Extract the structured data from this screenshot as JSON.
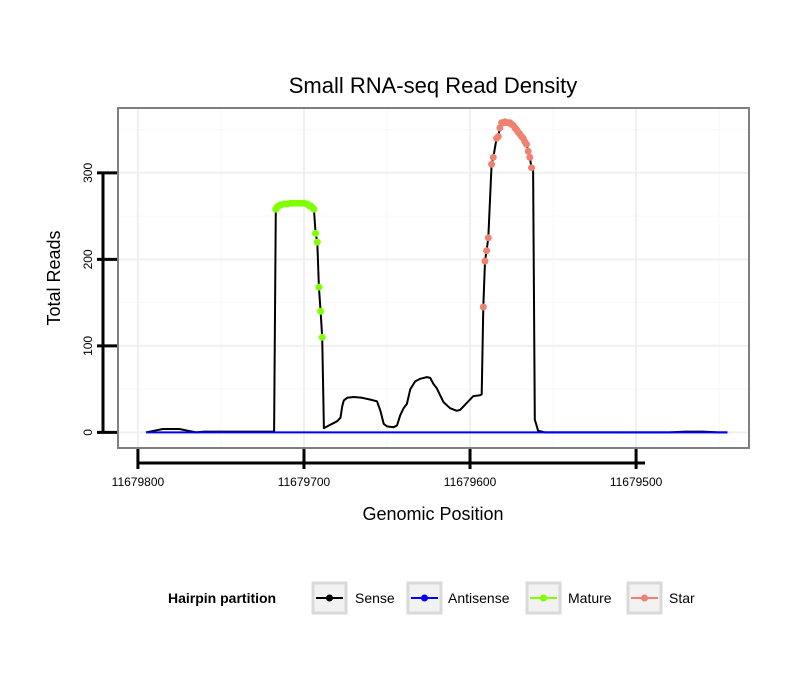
{
  "chart_data": {
    "type": "line",
    "title": "Small RNA-seq Read Density",
    "xlabel": "Genomic Position",
    "ylabel": "Total Reads",
    "x_reversed": true,
    "xlim": [
      11679812,
      11679432
    ],
    "ylim": [
      -18,
      375
    ],
    "x_ticks": [
      11679800,
      11679700,
      11679600,
      11679500
    ],
    "x_tick_labels": [
      "11679800",
      "11679700",
      "11679600",
      "11679500"
    ],
    "y_ticks": [
      0,
      100,
      200,
      300
    ],
    "y_tick_labels": [
      "0",
      "100",
      "200",
      "300"
    ],
    "grid": true,
    "legend": {
      "title": "Hairpin partition",
      "position": "bottom",
      "entries": [
        {
          "label": "Sense",
          "color": "#000000"
        },
        {
          "label": "Antisense",
          "color": "#0000ff"
        },
        {
          "label": "Mature",
          "color": "#7fff00"
        },
        {
          "label": "Star",
          "color": "#f08070"
        }
      ]
    },
    "series": [
      {
        "name": "Sense",
        "color": "#000000",
        "points": [
          [
            11679795,
            0
          ],
          [
            11679790,
            2
          ],
          [
            11679785,
            4
          ],
          [
            11679780,
            4
          ],
          [
            11679775,
            4
          ],
          [
            11679770,
            2
          ],
          [
            11679765,
            0
          ],
          [
            11679760,
            1
          ],
          [
            11679740,
            1
          ],
          [
            11679720,
            1
          ],
          [
            11679718,
            1
          ],
          [
            11679717,
            258
          ],
          [
            11679715,
            262
          ],
          [
            11679710,
            264
          ],
          [
            11679705,
            265
          ],
          [
            11679700,
            265
          ],
          [
            11679696,
            263
          ],
          [
            11679694,
            258
          ],
          [
            11679693,
            230
          ],
          [
            11679692,
            220
          ],
          [
            11679691,
            168
          ],
          [
            11679690,
            140
          ],
          [
            11679689,
            110
          ],
          [
            11679688,
            5
          ],
          [
            11679685,
            8
          ],
          [
            11679680,
            13
          ],
          [
            11679678,
            17
          ],
          [
            11679677,
            30
          ],
          [
            11679676,
            37
          ],
          [
            11679674,
            40
          ],
          [
            11679670,
            41
          ],
          [
            11679665,
            40
          ],
          [
            11679660,
            38
          ],
          [
            11679656,
            36
          ],
          [
            11679654,
            25
          ],
          [
            11679652,
            10
          ],
          [
            11679650,
            7
          ],
          [
            11679646,
            6
          ],
          [
            11679644,
            8
          ],
          [
            11679642,
            20
          ],
          [
            11679640,
            28
          ],
          [
            11679638,
            33
          ],
          [
            11679636,
            50
          ],
          [
            11679633,
            59
          ],
          [
            11679630,
            62
          ],
          [
            11679626,
            64
          ],
          [
            11679624,
            63
          ],
          [
            11679622,
            56
          ],
          [
            11679620,
            51
          ],
          [
            11679618,
            43
          ],
          [
            11679616,
            35
          ],
          [
            11679612,
            28
          ],
          [
            11679608,
            25
          ],
          [
            11679606,
            26
          ],
          [
            11679604,
            30
          ],
          [
            11679602,
            34
          ],
          [
            11679598,
            42
          ],
          [
            11679594,
            43
          ],
          [
            11679593,
            44
          ],
          [
            11679592,
            145
          ],
          [
            11679591,
            198
          ],
          [
            11679590,
            210
          ],
          [
            11679589,
            225
          ],
          [
            11679587,
            310
          ],
          [
            11679586,
            318
          ],
          [
            11679584,
            340
          ],
          [
            11679583,
            342
          ],
          [
            11679582,
            352
          ],
          [
            11679581,
            358
          ],
          [
            11679576,
            358
          ],
          [
            11679574,
            355
          ],
          [
            11679572,
            350
          ],
          [
            11679570,
            345
          ],
          [
            11679568,
            340
          ],
          [
            11679566,
            333
          ],
          [
            11679565,
            325
          ],
          [
            11679564,
            318
          ],
          [
            11679563,
            306
          ],
          [
            11679562,
            305
          ],
          [
            11679561,
            15
          ],
          [
            11679559,
            2
          ],
          [
            11679555,
            0
          ],
          [
            11679540,
            0
          ],
          [
            11679520,
            0
          ],
          [
            11679500,
            0
          ],
          [
            11679480,
            0
          ],
          [
            11679470,
            1
          ],
          [
            11679465,
            1
          ],
          [
            11679460,
            1
          ],
          [
            11679450,
            0
          ],
          [
            11679445,
            0
          ]
        ]
      },
      {
        "name": "Antisense",
        "color": "#0000ff",
        "points": [
          [
            11679795,
            0
          ],
          [
            11679445,
            0
          ]
        ]
      },
      {
        "name": "Mature",
        "color": "#7fff00",
        "points": [
          [
            11679717,
            258
          ],
          [
            11679716,
            261
          ],
          [
            11679715,
            262
          ],
          [
            11679714,
            263
          ],
          [
            11679712,
            264
          ],
          [
            11679710,
            264
          ],
          [
            11679708,
            265
          ],
          [
            11679706,
            265
          ],
          [
            11679704,
            265
          ],
          [
            11679702,
            265
          ],
          [
            11679700,
            265
          ],
          [
            11679698,
            264
          ],
          [
            11679697,
            262
          ],
          [
            11679696,
            262
          ],
          [
            11679695,
            260
          ],
          [
            11679694,
            258
          ],
          [
            11679693,
            230
          ],
          [
            11679692,
            220
          ],
          [
            11679691,
            168
          ],
          [
            11679690,
            140
          ],
          [
            11679689,
            110
          ]
        ]
      },
      {
        "name": "Star",
        "color": "#f08070",
        "points": [
          [
            11679592,
            145
          ],
          [
            11679591,
            198
          ],
          [
            11679590,
            210
          ],
          [
            11679589,
            225
          ],
          [
            11679587,
            310
          ],
          [
            11679586,
            318
          ],
          [
            11679584,
            340
          ],
          [
            11679583,
            342
          ],
          [
            11679582,
            352
          ],
          [
            11679581,
            358
          ],
          [
            11679580,
            358
          ],
          [
            11679579,
            359
          ],
          [
            11679578,
            358
          ],
          [
            11679577,
            358
          ],
          [
            11679576,
            358
          ],
          [
            11679575,
            356
          ],
          [
            11679574,
            355
          ],
          [
            11679573,
            352
          ],
          [
            11679572,
            350
          ],
          [
            11679571,
            347
          ],
          [
            11679570,
            345
          ],
          [
            11679569,
            342
          ],
          [
            11679568,
            340
          ],
          [
            11679567,
            336
          ],
          [
            11679566,
            333
          ],
          [
            11679565,
            325
          ],
          [
            11679564,
            318
          ],
          [
            11679563,
            306
          ]
        ]
      }
    ]
  }
}
